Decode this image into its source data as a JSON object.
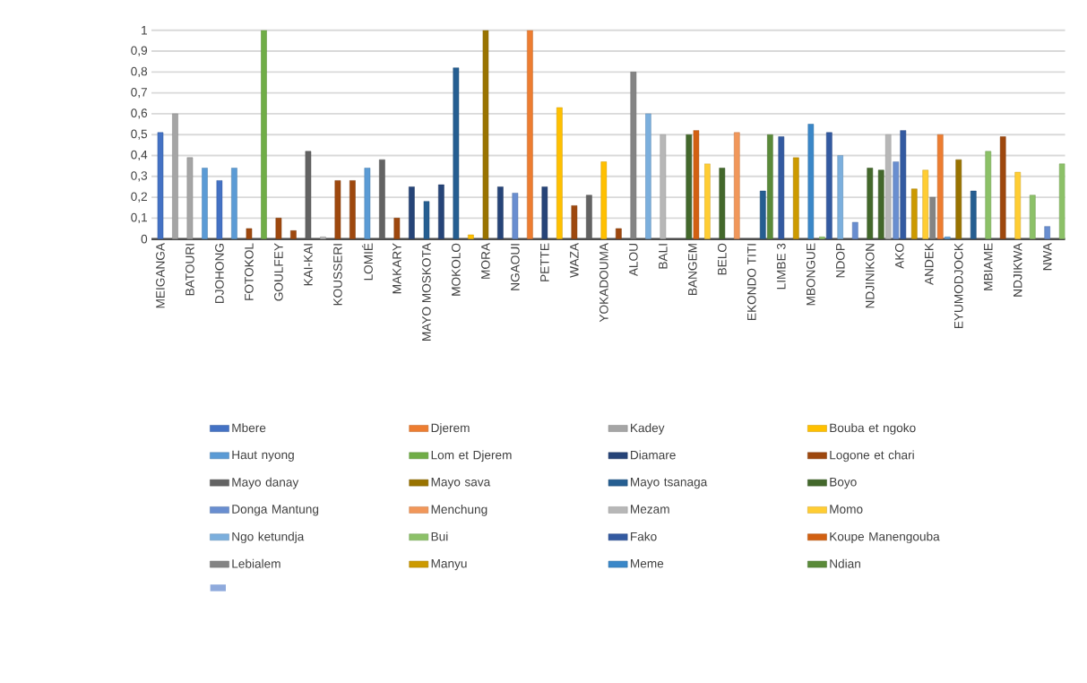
{
  "chart_data": {
    "type": "bar",
    "categories": [
      "MEIGANGA",
      null,
      "BATOURI",
      null,
      "DJOHONG",
      null,
      "FOTOKOL",
      null,
      "GOULFEY",
      null,
      "KAI-KAI",
      null,
      "KOUSSERI",
      null,
      "LOMIÉ",
      null,
      "MAKARY",
      null,
      "MAYO MOSKOTA",
      null,
      "MOKOLO",
      null,
      "MORA",
      null,
      "NGAOUI",
      null,
      "PETTE",
      null,
      "WAZA",
      null,
      "YOKADOUMA",
      null,
      "ALOU",
      null,
      "BALI",
      null,
      "BANGEM",
      null,
      "BELO",
      null,
      "EKONDO TITI",
      null,
      "LIMBE 3",
      null,
      "MBONGUE",
      null,
      "NDOP",
      null,
      "NDJINIKON",
      null,
      "AKO",
      null,
      "ANDEK",
      null,
      "EYUMODJOCK",
      null,
      "MBIAME",
      null,
      "NDJIKWA",
      null,
      "NWA",
      null
    ],
    "ylim": [
      0,
      1
    ],
    "yticks": [
      {
        "value": 0,
        "label": "0"
      },
      {
        "value": 0.1,
        "label": "0,1"
      },
      {
        "value": 0.2,
        "label": "0,2"
      },
      {
        "value": 0.3,
        "label": "0,3"
      },
      {
        "value": 0.4,
        "label": "0,4"
      },
      {
        "value": 0.5,
        "label": "0,5"
      },
      {
        "value": 0.6,
        "label": "0,6"
      },
      {
        "value": 0.7,
        "label": "0,7"
      },
      {
        "value": 0.8,
        "label": "0,8"
      },
      {
        "value": 0.9,
        "label": "0,9"
      },
      {
        "value": 1,
        "label": "1"
      }
    ],
    "grid": "y",
    "legend": "bottom",
    "series": [
      {
        "name": "Mbere",
        "color": "#4472c4",
        "values": [
          0.51,
          null,
          null,
          null,
          0.28,
          null,
          null,
          null,
          null,
          null,
          null,
          null,
          null,
          null,
          null,
          null,
          null,
          null,
          null,
          null,
          null,
          null,
          null,
          null,
          null,
          null,
          null,
          null,
          null,
          null,
          null,
          null,
          null,
          null,
          null,
          null,
          null,
          null,
          null,
          null,
          null,
          null,
          null,
          null,
          null,
          null,
          null,
          null,
          null,
          null,
          null,
          null,
          null,
          null,
          null,
          null,
          null,
          null,
          null,
          null,
          null,
          null
        ]
      },
      {
        "name": "Djerem",
        "color": "#ed7d31",
        "values": [
          null,
          null,
          null,
          null,
          null,
          null,
          null,
          null,
          null,
          null,
          null,
          null,
          null,
          null,
          null,
          null,
          null,
          null,
          null,
          null,
          null,
          null,
          null,
          null,
          null,
          1.0,
          null,
          null,
          null,
          null,
          null,
          null,
          null,
          null,
          null,
          null,
          null,
          null,
          null,
          null,
          null,
          null,
          null,
          null,
          null,
          null,
          null,
          null,
          null,
          null,
          null,
          null,
          null,
          0.5,
          null,
          null,
          null,
          null,
          null,
          null,
          null,
          null
        ]
      },
      {
        "name": "Kadey",
        "color": "#a5a5a5",
        "values": [
          null,
          0.6,
          0.39,
          null,
          null,
          null,
          null,
          null,
          null,
          null,
          null,
          null,
          null,
          null,
          null,
          null,
          null,
          null,
          null,
          null,
          null,
          null,
          null,
          null,
          null,
          null,
          null,
          null,
          null,
          null,
          null,
          null,
          null,
          null,
          null,
          null,
          null,
          null,
          null,
          null,
          null,
          null,
          null,
          null,
          null,
          null,
          null,
          null,
          null,
          null,
          null,
          null,
          null,
          null,
          null,
          null,
          null,
          null,
          null,
          null,
          null,
          null
        ]
      },
      {
        "name": "Bouba et ngoko",
        "color": "#ffc000",
        "values": [
          null,
          null,
          null,
          null,
          null,
          null,
          null,
          null,
          null,
          null,
          null,
          null,
          null,
          null,
          null,
          null,
          null,
          null,
          null,
          null,
          null,
          0.02,
          null,
          null,
          null,
          null,
          null,
          0.63,
          null,
          null,
          0.37,
          null,
          null,
          null,
          null,
          null,
          null,
          null,
          null,
          null,
          null,
          null,
          null,
          null,
          null,
          null,
          null,
          null,
          null,
          null,
          null,
          null,
          null,
          null,
          null,
          null,
          null,
          null,
          null,
          null,
          null,
          null
        ]
      },
      {
        "name": "Haut nyong",
        "color": "#5b9bd5",
        "values": [
          null,
          null,
          null,
          0.34,
          null,
          0.34,
          null,
          null,
          null,
          null,
          null,
          null,
          null,
          null,
          0.34,
          null,
          null,
          null,
          null,
          null,
          null,
          null,
          null,
          null,
          null,
          null,
          null,
          null,
          null,
          null,
          null,
          null,
          null,
          null,
          null,
          null,
          null,
          null,
          null,
          null,
          null,
          null,
          null,
          null,
          null,
          null,
          null,
          null,
          null,
          null,
          null,
          null,
          null,
          0.01,
          null,
          null,
          null,
          null,
          null,
          null,
          null,
          null
        ]
      },
      {
        "name": "Lom et Djerem",
        "color": "#70ad47",
        "values": [
          null,
          null,
          null,
          null,
          null,
          null,
          null,
          1.0,
          null,
          null,
          null,
          null,
          null,
          null,
          null,
          null,
          null,
          null,
          null,
          null,
          null,
          null,
          null,
          null,
          null,
          null,
          null,
          null,
          null,
          null,
          null,
          null,
          null,
          null,
          null,
          null,
          null,
          null,
          null,
          null,
          null,
          null,
          null,
          null,
          null,
          null,
          null,
          null,
          null,
          null,
          null,
          null,
          null,
          null,
          null,
          null,
          null,
          null,
          null,
          null,
          null,
          null
        ]
      },
      {
        "name": "Diamare",
        "color": "#264478",
        "values": [
          null,
          null,
          null,
          null,
          null,
          null,
          null,
          null,
          null,
          null,
          null,
          null,
          null,
          null,
          null,
          null,
          null,
          0.25,
          null,
          0.26,
          null,
          null,
          null,
          0.25,
          null,
          null,
          0.25,
          null,
          null,
          null,
          null,
          null,
          null,
          null,
          null,
          null,
          null,
          null,
          null,
          null,
          null,
          null,
          null,
          null,
          null,
          null,
          null,
          null,
          null,
          null,
          null,
          null,
          null,
          null,
          null,
          null,
          null,
          null,
          null,
          null,
          null,
          null
        ]
      },
      {
        "name": "Logone et chari",
        "color": "#9e480e",
        "values": [
          null,
          null,
          null,
          null,
          null,
          null,
          0.05,
          null,
          0.1,
          0.04,
          null,
          null,
          0.28,
          0.28,
          null,
          null,
          0.1,
          null,
          null,
          null,
          null,
          null,
          null,
          null,
          null,
          null,
          null,
          null,
          0.16,
          null,
          null,
          0.05,
          null,
          null,
          null,
          null,
          null,
          null,
          null,
          null,
          null,
          null,
          null,
          null,
          null,
          null,
          null,
          null,
          null,
          null,
          null,
          null,
          null,
          null,
          null,
          null,
          null,
          0.49,
          null,
          null,
          null,
          null
        ]
      },
      {
        "name": "Mayo danay",
        "color": "#636363",
        "values": [
          null,
          null,
          null,
          null,
          null,
          null,
          null,
          null,
          null,
          null,
          0.42,
          null,
          null,
          null,
          null,
          0.38,
          null,
          null,
          null,
          null,
          null,
          null,
          null,
          null,
          null,
          null,
          null,
          null,
          null,
          0.21,
          null,
          null,
          null,
          null,
          null,
          null,
          null,
          null,
          null,
          null,
          null,
          null,
          null,
          null,
          null,
          null,
          null,
          null,
          null,
          null,
          null,
          null,
          null,
          null,
          null,
          null,
          null,
          null,
          null,
          null,
          null,
          null
        ]
      },
      {
        "name": "Mayo sava",
        "color": "#997300",
        "values": [
          null,
          null,
          null,
          null,
          null,
          null,
          null,
          null,
          null,
          null,
          null,
          null,
          null,
          null,
          null,
          null,
          null,
          null,
          null,
          null,
          null,
          null,
          1.0,
          null,
          null,
          null,
          null,
          null,
          null,
          null,
          null,
          null,
          null,
          null,
          null,
          null,
          null,
          null,
          null,
          null,
          null,
          null,
          null,
          null,
          null,
          null,
          null,
          null,
          null,
          null,
          null,
          null,
          null,
          null,
          0.38,
          null,
          null,
          null,
          null,
          null,
          null,
          null
        ]
      },
      {
        "name": "Mayo tsanaga",
        "color": "#255e91",
        "values": [
          null,
          null,
          null,
          null,
          null,
          null,
          null,
          null,
          null,
          null,
          null,
          null,
          null,
          null,
          null,
          null,
          null,
          null,
          0.18,
          null,
          0.82,
          null,
          null,
          null,
          null,
          null,
          null,
          null,
          null,
          null,
          null,
          null,
          null,
          null,
          null,
          null,
          null,
          null,
          null,
          null,
          null,
          0.23,
          null,
          null,
          null,
          null,
          null,
          null,
          null,
          null,
          null,
          null,
          null,
          null,
          null,
          0.23,
          null,
          null,
          null,
          null,
          null,
          null
        ]
      },
      {
        "name": "Boyo",
        "color": "#43682b",
        "values": [
          null,
          null,
          null,
          null,
          null,
          null,
          null,
          null,
          null,
          null,
          null,
          null,
          null,
          null,
          null,
          null,
          null,
          null,
          null,
          null,
          null,
          null,
          null,
          null,
          null,
          null,
          null,
          null,
          null,
          null,
          null,
          null,
          null,
          null,
          null,
          null,
          0.5,
          null,
          0.34,
          null,
          null,
          null,
          null,
          null,
          null,
          null,
          null,
          null,
          0.34,
          0.33,
          null,
          null,
          null,
          null,
          null,
          null,
          null,
          null,
          null,
          null,
          null,
          null
        ]
      },
      {
        "name": "Donga Mantung",
        "color": "#698ed0",
        "values": [
          null,
          null,
          null,
          null,
          null,
          null,
          null,
          null,
          null,
          null,
          null,
          null,
          null,
          null,
          null,
          null,
          null,
          null,
          null,
          null,
          null,
          null,
          null,
          null,
          0.22,
          null,
          null,
          null,
          null,
          null,
          null,
          null,
          null,
          null,
          null,
          null,
          null,
          null,
          null,
          null,
          null,
          null,
          null,
          null,
          null,
          null,
          null,
          0.08,
          null,
          null,
          0.37,
          null,
          null,
          null,
          null,
          null,
          null,
          null,
          null,
          null,
          0.06,
          null
        ]
      },
      {
        "name": "Menchung",
        "color": "#f1975a",
        "values": [
          null,
          null,
          null,
          null,
          null,
          null,
          null,
          null,
          null,
          null,
          null,
          null,
          null,
          null,
          null,
          null,
          null,
          null,
          null,
          null,
          null,
          null,
          null,
          null,
          null,
          null,
          null,
          null,
          null,
          null,
          null,
          null,
          null,
          null,
          null,
          null,
          null,
          null,
          null,
          0.51,
          null,
          null,
          null,
          null,
          null,
          null,
          null,
          null,
          null,
          null,
          null,
          null,
          null,
          null,
          null,
          null,
          null,
          null,
          null,
          null,
          null,
          null
        ]
      },
      {
        "name": "Mezam",
        "color": "#b7b7b7",
        "values": [
          null,
          null,
          null,
          null,
          null,
          null,
          null,
          null,
          null,
          null,
          null,
          0.01,
          null,
          null,
          null,
          null,
          null,
          null,
          null,
          null,
          null,
          null,
          null,
          null,
          null,
          null,
          null,
          null,
          null,
          null,
          null,
          null,
          null,
          null,
          0.5,
          null,
          null,
          null,
          null,
          null,
          null,
          null,
          null,
          null,
          null,
          null,
          null,
          null,
          null,
          0.5,
          null,
          null,
          null,
          null,
          null,
          null,
          null,
          null,
          null,
          null,
          null,
          null
        ]
      },
      {
        "name": "Momo",
        "color": "#ffcd33",
        "values": [
          null,
          null,
          null,
          null,
          null,
          null,
          null,
          null,
          null,
          null,
          null,
          null,
          null,
          null,
          null,
          null,
          null,
          null,
          null,
          null,
          null,
          null,
          null,
          null,
          null,
          null,
          null,
          null,
          null,
          null,
          null,
          null,
          null,
          null,
          null,
          null,
          null,
          0.36,
          null,
          null,
          null,
          null,
          null,
          null,
          null,
          null,
          null,
          null,
          null,
          null,
          null,
          null,
          0.33,
          null,
          null,
          null,
          null,
          null,
          0.32,
          null,
          null,
          null
        ]
      },
      {
        "name": "Ngo ketundja",
        "color": "#7cafdd",
        "values": [
          null,
          null,
          null,
          null,
          null,
          null,
          null,
          null,
          null,
          null,
          null,
          null,
          null,
          null,
          null,
          null,
          null,
          null,
          null,
          null,
          null,
          null,
          null,
          null,
          null,
          null,
          null,
          null,
          null,
          null,
          null,
          null,
          null,
          0.6,
          null,
          null,
          null,
          null,
          null,
          null,
          null,
          null,
          null,
          null,
          null,
          null,
          0.4,
          null,
          null,
          null,
          null,
          null,
          null,
          null,
          null,
          null,
          null,
          null,
          null,
          null,
          null,
          null
        ]
      },
      {
        "name": "Bui",
        "color": "#8cc168",
        "values": [
          null,
          null,
          null,
          null,
          null,
          null,
          null,
          null,
          null,
          null,
          null,
          null,
          null,
          null,
          null,
          null,
          null,
          null,
          null,
          null,
          null,
          null,
          null,
          null,
          null,
          null,
          null,
          null,
          null,
          null,
          null,
          null,
          null,
          null,
          null,
          null,
          null,
          null,
          null,
          null,
          null,
          null,
          null,
          null,
          null,
          0.01,
          null,
          null,
          null,
          null,
          null,
          null,
          null,
          null,
          null,
          null,
          0.42,
          null,
          null,
          0.21,
          null,
          0.36
        ]
      },
      {
        "name": "Fako",
        "color": "#335aa1",
        "values": [
          null,
          null,
          null,
          null,
          null,
          null,
          null,
          null,
          null,
          null,
          null,
          null,
          null,
          null,
          null,
          null,
          null,
          null,
          null,
          null,
          null,
          null,
          null,
          null,
          null,
          null,
          null,
          null,
          null,
          null,
          null,
          null,
          null,
          null,
          null,
          null,
          null,
          null,
          null,
          null,
          null,
          null,
          0.49,
          null,
          null,
          0.51,
          null,
          null,
          null,
          null,
          0.52,
          null,
          null,
          null,
          null,
          null,
          null,
          null,
          null,
          null,
          null,
          null
        ]
      },
      {
        "name": "Koupe Manengouba",
        "color": "#d26012",
        "values": [
          null,
          null,
          null,
          null,
          null,
          null,
          null,
          null,
          null,
          null,
          null,
          null,
          null,
          null,
          null,
          null,
          null,
          null,
          null,
          null,
          null,
          null,
          null,
          null,
          null,
          null,
          null,
          null,
          null,
          null,
          null,
          null,
          null,
          null,
          null,
          null,
          0.52,
          null,
          null,
          null,
          null,
          null,
          null,
          null,
          null,
          null,
          null,
          null,
          null,
          null,
          null,
          null,
          null,
          null,
          null,
          null,
          null,
          null,
          null,
          null,
          null,
          null
        ]
      },
      {
        "name": "Lebialem",
        "color": "#848484",
        "values": [
          null,
          null,
          null,
          null,
          null,
          null,
          null,
          null,
          null,
          null,
          null,
          null,
          null,
          null,
          null,
          null,
          null,
          null,
          null,
          null,
          null,
          null,
          null,
          null,
          null,
          null,
          null,
          null,
          null,
          null,
          null,
          null,
          0.8,
          null,
          null,
          null,
          null,
          null,
          null,
          null,
          null,
          null,
          null,
          null,
          null,
          null,
          null,
          null,
          null,
          null,
          null,
          null,
          0.2,
          null,
          null,
          null,
          null,
          null,
          null,
          null,
          null,
          null
        ]
      },
      {
        "name": "Manyu",
        "color": "#cc9a00",
        "values": [
          null,
          null,
          null,
          null,
          null,
          null,
          null,
          null,
          null,
          null,
          null,
          null,
          null,
          null,
          null,
          null,
          null,
          null,
          null,
          null,
          null,
          null,
          null,
          null,
          null,
          null,
          null,
          null,
          null,
          null,
          null,
          null,
          null,
          null,
          null,
          null,
          null,
          null,
          null,
          null,
          null,
          null,
          null,
          0.39,
          null,
          null,
          null,
          null,
          null,
          null,
          null,
          0.24,
          null,
          null,
          null,
          null,
          null,
          null,
          null,
          null,
          null,
          null
        ]
      },
      {
        "name": "Meme",
        "color": "#3a87c8",
        "values": [
          null,
          null,
          null,
          null,
          null,
          null,
          null,
          null,
          null,
          null,
          null,
          null,
          null,
          null,
          null,
          null,
          null,
          null,
          null,
          null,
          null,
          null,
          null,
          null,
          null,
          null,
          null,
          null,
          null,
          null,
          null,
          null,
          null,
          null,
          null,
          null,
          null,
          null,
          null,
          null,
          null,
          null,
          null,
          null,
          0.55,
          null,
          null,
          null,
          null,
          null,
          null,
          null,
          null,
          null,
          null,
          null,
          null,
          null,
          null,
          null,
          null,
          null
        ]
      },
      {
        "name": "Ndian",
        "color": "#5a8a39",
        "values": [
          null,
          null,
          null,
          null,
          null,
          null,
          null,
          null,
          null,
          null,
          null,
          null,
          null,
          null,
          null,
          null,
          null,
          null,
          null,
          null,
          null,
          null,
          null,
          null,
          null,
          null,
          null,
          null,
          null,
          null,
          null,
          null,
          null,
          null,
          null,
          null,
          null,
          null,
          null,
          null,
          null,
          0.5,
          null,
          null,
          null,
          null,
          null,
          null,
          null,
          null,
          null,
          null,
          null,
          null,
          null,
          null,
          null,
          null,
          null,
          null,
          null,
          null
        ]
      },
      {
        "color": "#8faadc",
        "values": [
          null,
          null,
          null,
          null,
          null,
          null,
          null,
          null,
          null,
          null,
          null,
          null,
          null,
          null,
          null,
          null,
          null,
          null,
          null,
          null,
          null,
          null,
          null,
          null,
          null,
          null,
          null,
          null,
          null,
          null,
          null,
          null,
          null,
          null,
          null,
          null,
          null,
          null,
          null,
          null,
          null,
          null,
          null,
          null,
          null,
          null,
          null,
          null,
          null,
          null,
          null,
          null,
          null,
          null,
          null,
          null,
          null,
          null,
          null,
          null,
          null,
          null
        ]
      }
    ]
  }
}
